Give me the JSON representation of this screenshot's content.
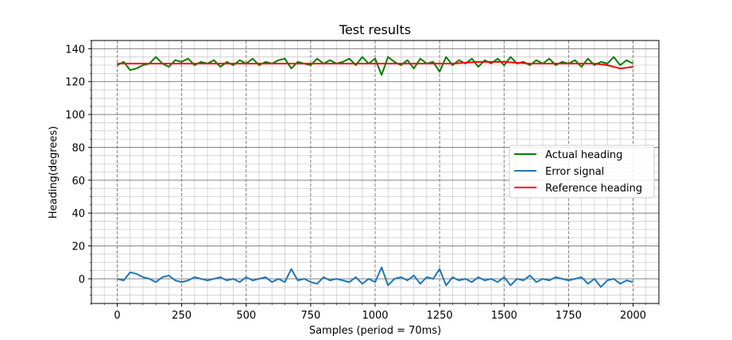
{
  "chart_data": {
    "type": "line",
    "title": "Test results",
    "xlabel": "Samples (period = 70ms)",
    "ylabel": "Heading(degrees)",
    "xlim": [
      -100,
      2100
    ],
    "ylim": [
      -15,
      145
    ],
    "xticks": [
      0,
      250,
      500,
      750,
      1000,
      1250,
      1500,
      1750,
      2000
    ],
    "yticks": [
      0,
      20,
      40,
      60,
      80,
      100,
      120,
      140
    ],
    "x_minor_step": 50,
    "y_minor_step": 5,
    "grid": {
      "major": true,
      "minor": true,
      "major_color": "#808080",
      "minor_color": "#cccccc"
    },
    "legend_position": "center-right",
    "series": [
      {
        "name": "Actual heading",
        "color": "#008000",
        "x": [
          0,
          25,
          50,
          75,
          100,
          125,
          150,
          175,
          200,
          225,
          250,
          275,
          300,
          325,
          350,
          375,
          400,
          425,
          450,
          475,
          500,
          525,
          550,
          575,
          600,
          625,
          650,
          675,
          700,
          725,
          750,
          775,
          800,
          825,
          850,
          875,
          900,
          925,
          950,
          975,
          1000,
          1025,
          1050,
          1075,
          1100,
          1125,
          1150,
          1175,
          1200,
          1225,
          1250,
          1275,
          1300,
          1325,
          1350,
          1375,
          1400,
          1425,
          1450,
          1475,
          1500,
          1525,
          1550,
          1575,
          1600,
          1625,
          1650,
          1675,
          1700,
          1725,
          1750,
          1775,
          1800,
          1825,
          1850,
          1875,
          1900,
          1925,
          1950,
          1975,
          2000
        ],
        "y": [
          130,
          132,
          127,
          128,
          130,
          131,
          135,
          131,
          129,
          133,
          132,
          134,
          130,
          132,
          131,
          133,
          129,
          132,
          130,
          133,
          131,
          134,
          130,
          132,
          131,
          133,
          134,
          128,
          132,
          131,
          130,
          134,
          131,
          133,
          131,
          132,
          134,
          130,
          135,
          131,
          134,
          124,
          135,
          132,
          130,
          133,
          128,
          134,
          131,
          132,
          126,
          135,
          130,
          133,
          131,
          134,
          129,
          133,
          131,
          134,
          130,
          135,
          131,
          132,
          130,
          133,
          131,
          134,
          130,
          132,
          131,
          133,
          129,
          134,
          130,
          132,
          131,
          135,
          130,
          133,
          131
        ]
      },
      {
        "name": "Error signal",
        "color": "#1f77b4",
        "x": [
          0,
          25,
          50,
          75,
          100,
          125,
          150,
          175,
          200,
          225,
          250,
          275,
          300,
          325,
          350,
          375,
          400,
          425,
          450,
          475,
          500,
          525,
          550,
          575,
          600,
          625,
          650,
          675,
          700,
          725,
          750,
          775,
          800,
          825,
          850,
          875,
          900,
          925,
          950,
          975,
          1000,
          1025,
          1050,
          1075,
          1100,
          1125,
          1150,
          1175,
          1200,
          1225,
          1250,
          1275,
          1300,
          1325,
          1350,
          1375,
          1400,
          1425,
          1450,
          1475,
          1500,
          1525,
          1550,
          1575,
          1600,
          1625,
          1650,
          1675,
          1700,
          1725,
          1750,
          1775,
          1800,
          1825,
          1850,
          1875,
          1900,
          1925,
          1950,
          1975,
          2000
        ],
        "y": [
          0,
          -1,
          4,
          3,
          1,
          0,
          -2,
          1,
          2,
          -1,
          -2,
          -1,
          1,
          0,
          -1,
          0,
          1,
          -1,
          0,
          -2,
          1,
          -1,
          0,
          1,
          -2,
          0,
          -2,
          6,
          -1,
          0,
          -2,
          -3,
          1,
          -1,
          0,
          -1,
          -2,
          1,
          -3,
          0,
          -2,
          7,
          -4,
          0,
          1,
          -1,
          2,
          -3,
          1,
          0,
          6,
          -4,
          1,
          -1,
          0,
          -2,
          1,
          -1,
          0,
          -2,
          1,
          -4,
          0,
          -1,
          2,
          -2,
          0,
          -1,
          1,
          0,
          -1,
          0,
          1,
          -3,
          0,
          -5,
          -1,
          0,
          -3,
          -1,
          -2
        ]
      },
      {
        "name": "Reference heading",
        "color": "#ff0000",
        "x": [
          0,
          100,
          200,
          300,
          400,
          500,
          600,
          700,
          800,
          900,
          1000,
          1100,
          1200,
          1300,
          1400,
          1500,
          1600,
          1700,
          1800,
          1850,
          1900,
          1950,
          2000
        ],
        "y": [
          131,
          131,
          131,
          131,
          131,
          131,
          131,
          131,
          131,
          131,
          131,
          131,
          131,
          131,
          132,
          132,
          131,
          131,
          131,
          131,
          130,
          128,
          129
        ]
      }
    ]
  }
}
